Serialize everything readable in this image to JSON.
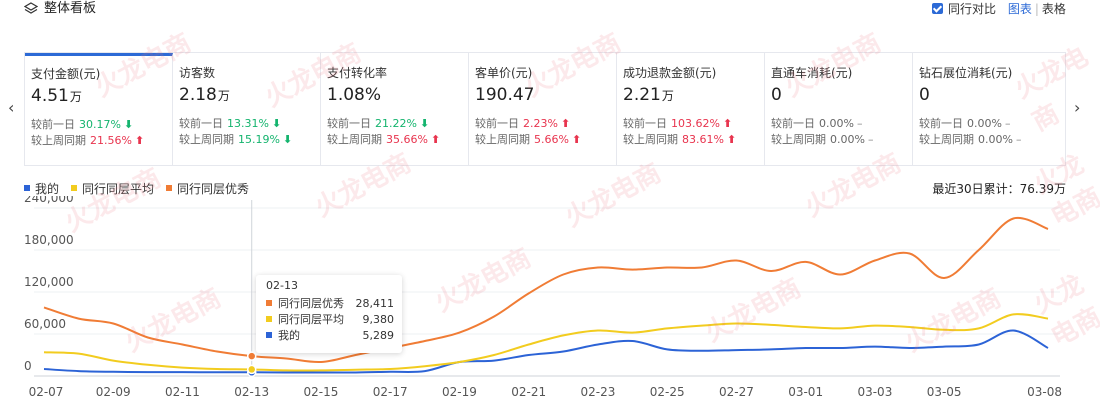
{
  "header": {
    "title": "整体看板",
    "compare_label": "同行对比",
    "view_chart": "图表",
    "view_table": "表格"
  },
  "watermark_text": "火龙电商",
  "metrics": [
    {
      "name": "支付金额(元)",
      "value": "4.51",
      "unit": "万",
      "day_label": "较前一日",
      "day_pct": "30.17%",
      "day_dir": "down",
      "week_label": "较上周同期",
      "week_pct": "21.56%",
      "week_dir": "up"
    },
    {
      "name": "访客数",
      "value": "2.18",
      "unit": "万",
      "day_label": "较前一日",
      "day_pct": "13.31%",
      "day_dir": "down",
      "week_label": "较上周同期",
      "week_pct": "15.19%",
      "week_dir": "down"
    },
    {
      "name": "支付转化率",
      "value": "1.08%",
      "unit": "",
      "day_label": "较前一日",
      "day_pct": "21.22%",
      "day_dir": "down",
      "week_label": "较上周同期",
      "week_pct": "35.66%",
      "week_dir": "up"
    },
    {
      "name": "客单价(元)",
      "value": "190.47",
      "unit": "",
      "day_label": "较前一日",
      "day_pct": "2.23%",
      "day_dir": "up",
      "week_label": "较上周同期",
      "week_pct": "5.66%",
      "week_dir": "up"
    },
    {
      "name": "成功退款金额(元)",
      "value": "2.21",
      "unit": "万",
      "day_label": "较前一日",
      "day_pct": "103.62%",
      "day_dir": "up",
      "week_label": "较上周同期",
      "week_pct": "83.61%",
      "week_dir": "up"
    },
    {
      "name": "直通车消耗(元)",
      "value": "0",
      "unit": "",
      "day_label": "较前一日",
      "day_pct": "0.00%",
      "day_dir": "flat",
      "week_label": "较上周同期",
      "week_pct": "0.00%",
      "week_dir": "flat"
    },
    {
      "name": "钻石展位消耗(元)",
      "value": "0",
      "unit": "",
      "day_label": "较前一日",
      "day_pct": "0.00%",
      "day_dir": "flat",
      "week_label": "较上周同期",
      "week_pct": "0.00%",
      "week_dir": "flat"
    }
  ],
  "cumulative": "最近30日累计：76.39万",
  "tooltip": {
    "date": "02-13",
    "rows": [
      {
        "name": "同行同层优秀",
        "value": "28,411",
        "color": "#f07c35"
      },
      {
        "name": "同行同层平均",
        "value": "9,380",
        "color": "#f2cc1f"
      },
      {
        "name": "我的",
        "value": "5,289",
        "color": "#2c63d6"
      }
    ]
  },
  "chart_data": {
    "type": "line",
    "x": [
      "02-07",
      "02-08",
      "02-09",
      "02-10",
      "02-11",
      "02-12",
      "02-13",
      "02-14",
      "02-15",
      "02-16",
      "02-17",
      "02-18",
      "02-19",
      "02-20",
      "02-21",
      "02-22",
      "02-23",
      "02-24",
      "02-25",
      "02-26",
      "02-27",
      "02-28",
      "03-01",
      "03-02",
      "03-03",
      "03-04",
      "03-05",
      "03-06",
      "03-07",
      "03-08"
    ],
    "x_ticks": [
      "02-07",
      "02-09",
      "02-11",
      "02-13",
      "02-15",
      "02-17",
      "02-19",
      "02-21",
      "02-23",
      "02-25",
      "02-27",
      "03-01",
      "03-03",
      "03-05",
      "03-08"
    ],
    "y_ticks": [
      "0",
      "60,000",
      "120,000",
      "180,000",
      "240,000"
    ],
    "ylim": [
      0,
      240000
    ],
    "series": [
      {
        "name": "我的",
        "color": "#2c63d6",
        "values": [
          10000,
          7000,
          6000,
          5500,
          5500,
          5300,
          5289,
          5000,
          5000,
          5000,
          6000,
          7000,
          20000,
          22000,
          30000,
          35000,
          45000,
          50000,
          38000,
          36000,
          37000,
          38000,
          40000,
          40000,
          42000,
          40000,
          42000,
          45000,
          65000,
          40000
        ]
      },
      {
        "name": "同行同层平均",
        "color": "#f2cc1f",
        "values": [
          34000,
          32000,
          22000,
          16000,
          12000,
          10000,
          9380,
          8000,
          8000,
          9000,
          10000,
          14000,
          20000,
          30000,
          45000,
          58000,
          65000,
          62000,
          68000,
          72000,
          75000,
          73000,
          70000,
          68000,
          72000,
          70000,
          66000,
          68000,
          88000,
          82000
        ]
      },
      {
        "name": "同行同层优秀",
        "color": "#f07c35",
        "values": [
          98000,
          82000,
          75000,
          55000,
          45000,
          35000,
          28411,
          25000,
          20000,
          30000,
          40000,
          50000,
          62000,
          85000,
          118000,
          145000,
          155000,
          152000,
          155000,
          155000,
          165000,
          150000,
          163000,
          145000,
          165000,
          175000,
          140000,
          180000,
          225000,
          210000
        ]
      }
    ],
    "legend_position": "top-left",
    "highlight_index": 6
  }
}
